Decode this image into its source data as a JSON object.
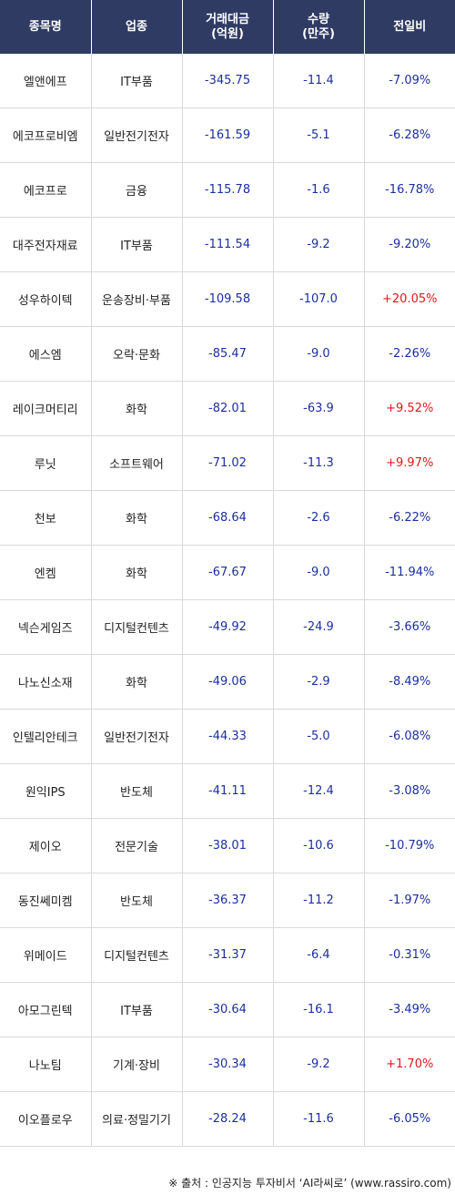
{
  "headers": {
    "name": "종목명",
    "sector": "업종",
    "trade_amount_line1": "거래대금",
    "trade_amount_line2": "(억원)",
    "volume_line1": "수량",
    "volume_line2": "(만주)",
    "change": "전일비"
  },
  "rows": [
    {
      "name": "엘앤에프",
      "sector": "IT부품",
      "amount": "-345.75",
      "volume": "-11.4",
      "change": "-7.09%",
      "dir": "neg"
    },
    {
      "name": "에코프로비엠",
      "sector": "일반전기전자",
      "amount": "-161.59",
      "volume": "-5.1",
      "change": "-6.28%",
      "dir": "neg"
    },
    {
      "name": "에코프로",
      "sector": "금융",
      "amount": "-115.78",
      "volume": "-1.6",
      "change": "-16.78%",
      "dir": "neg"
    },
    {
      "name": "대주전자재료",
      "sector": "IT부품",
      "amount": "-111.54",
      "volume": "-9.2",
      "change": "-9.20%",
      "dir": "neg"
    },
    {
      "name": "성우하이텍",
      "sector": "운송장비·부품",
      "amount": "-109.58",
      "volume": "-107.0",
      "change": "+20.05%",
      "dir": "pos"
    },
    {
      "name": "에스엠",
      "sector": "오락·문화",
      "amount": "-85.47",
      "volume": "-9.0",
      "change": "-2.26%",
      "dir": "neg"
    },
    {
      "name": "레이크머티리",
      "sector": "화학",
      "amount": "-82.01",
      "volume": "-63.9",
      "change": "+9.52%",
      "dir": "pos"
    },
    {
      "name": "루닛",
      "sector": "소프트웨어",
      "amount": "-71.02",
      "volume": "-11.3",
      "change": "+9.97%",
      "dir": "pos"
    },
    {
      "name": "천보",
      "sector": "화학",
      "amount": "-68.64",
      "volume": "-2.6",
      "change": "-6.22%",
      "dir": "neg"
    },
    {
      "name": "엔켐",
      "sector": "화학",
      "amount": "-67.67",
      "volume": "-9.0",
      "change": "-11.94%",
      "dir": "neg"
    },
    {
      "name": "넥슨게임즈",
      "sector": "디지털컨텐츠",
      "amount": "-49.92",
      "volume": "-24.9",
      "change": "-3.66%",
      "dir": "neg"
    },
    {
      "name": "나노신소재",
      "sector": "화학",
      "amount": "-49.06",
      "volume": "-2.9",
      "change": "-8.49%",
      "dir": "neg"
    },
    {
      "name": "인텔리안테크",
      "sector": "일반전기전자",
      "amount": "-44.33",
      "volume": "-5.0",
      "change": "-6.08%",
      "dir": "neg"
    },
    {
      "name": "원익IPS",
      "sector": "반도체",
      "amount": "-41.11",
      "volume": "-12.4",
      "change": "-3.08%",
      "dir": "neg"
    },
    {
      "name": "제이오",
      "sector": "전문기술",
      "amount": "-38.01",
      "volume": "-10.6",
      "change": "-10.79%",
      "dir": "neg"
    },
    {
      "name": "동진쎄미켐",
      "sector": "반도체",
      "amount": "-36.37",
      "volume": "-11.2",
      "change": "-1.97%",
      "dir": "neg"
    },
    {
      "name": "위메이드",
      "sector": "디지털컨텐츠",
      "amount": "-31.37",
      "volume": "-6.4",
      "change": "-0.31%",
      "dir": "neg"
    },
    {
      "name": "아모그린텍",
      "sector": "IT부품",
      "amount": "-30.64",
      "volume": "-16.1",
      "change": "-3.49%",
      "dir": "neg"
    },
    {
      "name": "나노팀",
      "sector": "기계·장비",
      "amount": "-30.34",
      "volume": "-9.2",
      "change": "+1.70%",
      "dir": "pos"
    },
    {
      "name": "이오플로우",
      "sector": "의료·정밀기기",
      "amount": "-28.24",
      "volume": "-11.6",
      "change": "-6.05%",
      "dir": "neg"
    }
  ],
  "source": "※ 출처 : 인공지능 투자비서 ‘AI라씨로’ (www.rassiro.com)",
  "colors": {
    "header_bg": "#2f3b63",
    "negative": "#1c2f9e",
    "positive": "#e0191c"
  }
}
